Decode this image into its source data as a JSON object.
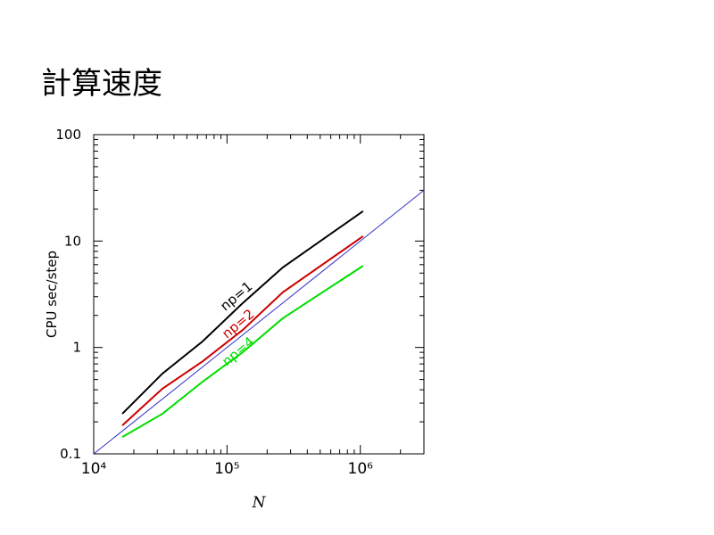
{
  "chart_data": {
    "type": "line",
    "title": "計算速度",
    "x_label": "N",
    "y_label": "CPU sec/step",
    "log_x": true,
    "log_y": true,
    "xlim": [
      10000,
      3000000
    ],
    "ylim": [
      0.1,
      100
    ],
    "xticks": [
      {
        "value": 10000,
        "label": "10⁴"
      },
      {
        "value": 100000,
        "label": "10⁵"
      },
      {
        "value": 1000000,
        "label": "10⁶"
      }
    ],
    "yticks": [
      0.1,
      1,
      10,
      100
    ],
    "series": [
      {
        "name": "np=1",
        "color": "#000000",
        "x": [
          16384,
          32768,
          65536,
          131072,
          262144,
          1048576
        ],
        "values": [
          0.238,
          0.568,
          1.14,
          2.61,
          5.65,
          19.1
        ]
      },
      {
        "name": "np=2",
        "color": "#cc0000",
        "x": [
          16384,
          32768,
          65536,
          131072,
          262144,
          1048576
        ],
        "values": [
          0.185,
          0.41,
          0.74,
          1.46,
          3.3,
          11.1
        ]
      },
      {
        "name": "np=4",
        "color": "#00dd00",
        "x": [
          16384,
          32768,
          65536,
          131072,
          262144,
          1048576
        ],
        "values": [
          0.144,
          0.238,
          0.476,
          0.9,
          1.88,
          5.85
        ]
      },
      {
        "color": "#3333cc",
        "x": [
          10000,
          3000000
        ],
        "values": [
          0.1,
          30
        ]
      }
    ]
  }
}
